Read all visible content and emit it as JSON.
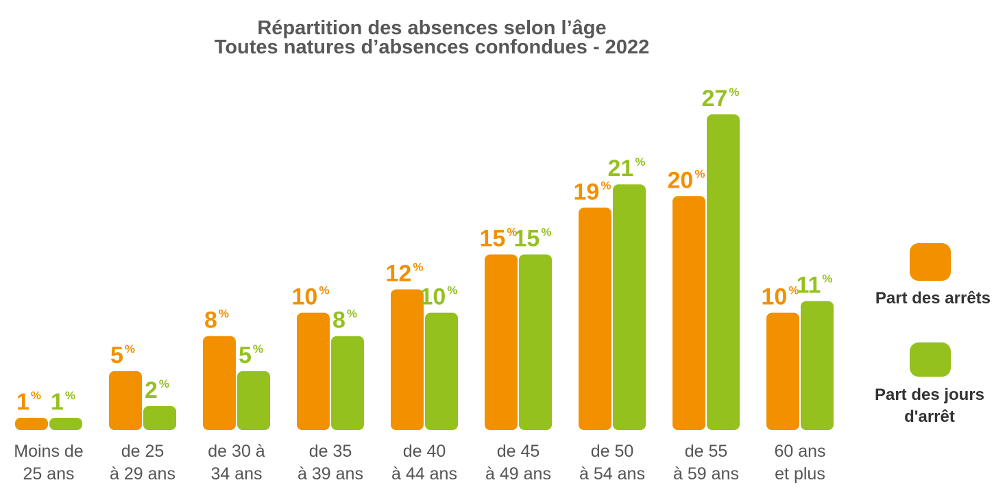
{
  "chart_data": {
    "type": "bar",
    "title": "Répartition des absences selon l’âge",
    "subtitle": "Toutes natures d’absences confondues - 2022",
    "categories": [
      "Moins de\n25 ans",
      "de 25\nà 29 ans",
      "de 30 à\n34 ans",
      "de 35\nà 39 ans",
      "de 40\nà 44 ans",
      "de 45\nà 49 ans",
      "de 50\nà 54 ans",
      "de 55\nà 59 ans",
      "60 ans\net plus"
    ],
    "series": [
      {
        "name": "Part des arrêts",
        "color": "#f29000",
        "values": [
          1,
          5,
          8,
          10,
          12,
          15,
          19,
          20,
          10
        ],
        "value_labels": [
          "1%",
          "5%",
          "8%",
          "10%",
          "12%",
          "15%",
          "19%",
          "20%",
          "10%"
        ]
      },
      {
        "name": "Part des jours\nd'arrêt",
        "color": "#95c11f",
        "values": [
          1,
          2,
          5,
          8,
          10,
          15,
          21,
          27,
          11
        ],
        "value_labels": [
          "1%",
          "2%",
          "5%",
          "8%",
          "10%",
          "15%",
          "21%",
          "27%",
          "11%"
        ]
      }
    ]
  }
}
